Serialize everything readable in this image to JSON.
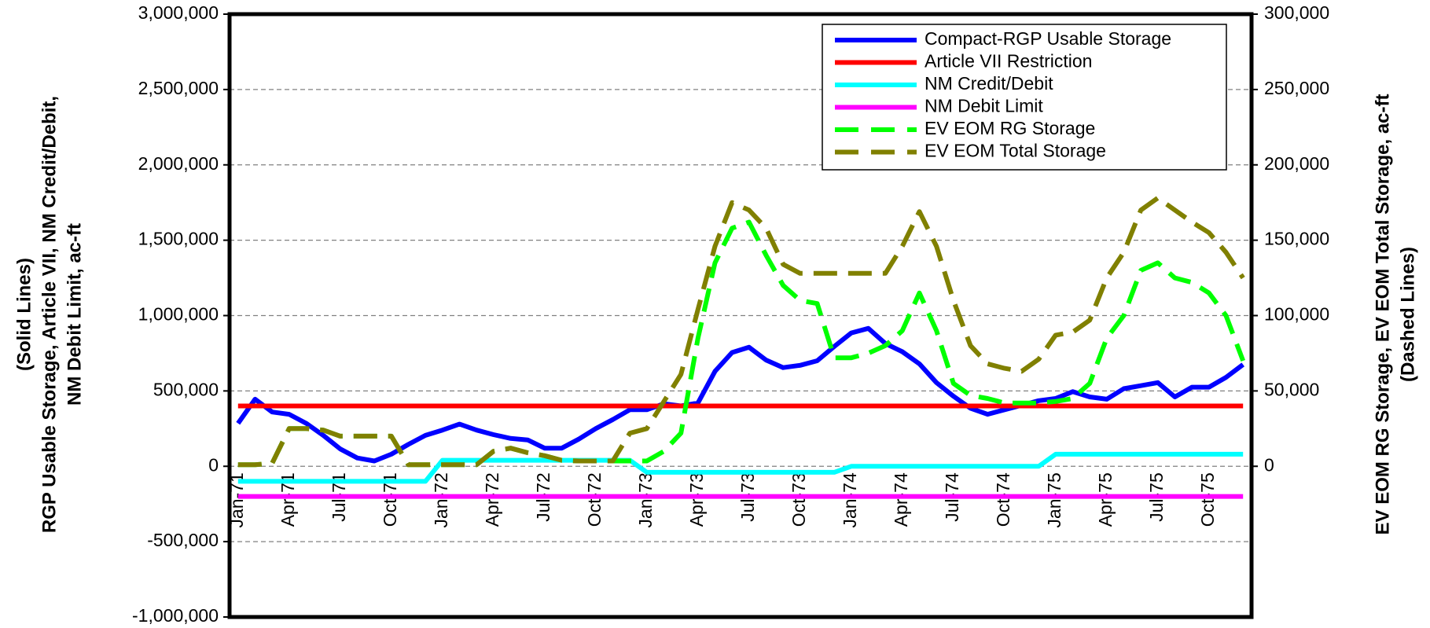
{
  "chart_data": {
    "type": "line",
    "y_label": [
      "(Solid Lines)",
      "RGP Usable Storage, Article VII, NM Credit/Debit,",
      "NM Debit Limit, ac-ft"
    ],
    "y2_label": [
      "EV EOM RG Storage, EV EOM Total Storage, ac-ft",
      "(Dashed Lines)"
    ],
    "categories": [
      "Jan-71",
      null,
      null,
      "Apr-71",
      null,
      null,
      "Jul-71",
      null,
      null,
      "Oct-71",
      null,
      null,
      "Jan-72",
      null,
      null,
      "Apr-72",
      null,
      null,
      "Jul-72",
      null,
      null,
      "Oct-72",
      null,
      null,
      "Jan-73",
      null,
      null,
      "Apr-73",
      null,
      null,
      "Jul-73",
      null,
      null,
      "Oct-73",
      null,
      null,
      "Jan-74",
      null,
      null,
      "Apr-74",
      null,
      null,
      "Jul-74",
      null,
      null,
      "Oct-74",
      null,
      null,
      "Jan-75",
      null,
      null,
      "Apr-75",
      null,
      null,
      "Jul-75",
      null,
      null,
      "Oct-75",
      null,
      null
    ],
    "ylim": [
      -1000000,
      3000000
    ],
    "yticks": [
      {
        "value": -1000000,
        "label": "-1,000,000"
      },
      {
        "value": -500000,
        "label": "-500,000"
      },
      0,
      {
        "value": 500000,
        "label": "500,000"
      },
      {
        "value": 1000000,
        "label": "1,000,000"
      },
      {
        "value": 1500000,
        "label": "1,500,000"
      },
      {
        "value": 2000000,
        "label": "2,000,000"
      },
      {
        "value": 2500000,
        "label": "2,500,000"
      },
      {
        "value": 3000000,
        "label": "3,000,000"
      }
    ],
    "y2lim": [
      -100000,
      300000
    ],
    "y2ticks": [
      0,
      {
        "value": 50000,
        "label": "50,000"
      },
      {
        "value": 100000,
        "label": "100,000"
      },
      {
        "value": 150000,
        "label": "150,000"
      },
      {
        "value": 200000,
        "label": "200,000"
      },
      {
        "value": 250000,
        "label": "250,000"
      },
      {
        "value": 300000,
        "label": "300,000"
      }
    ],
    "grid": true,
    "legend": "upper right",
    "series": [
      {
        "name": "Compact-RGP Usable Storage",
        "color": "#0000ff",
        "dashed": false,
        "values": [
          285000,
          445000,
          360000,
          345000,
          285000,
          205000,
          115000,
          55000,
          35000,
          80000,
          145000,
          205000,
          240000,
          280000,
          240000,
          210000,
          185000,
          175000,
          120000,
          120000,
          180000,
          250000,
          310000,
          375000,
          375000,
          415000,
          400000,
          420000,
          630000,
          755000,
          790000,
          705000,
          655000,
          670000,
          700000,
          795000,
          885000,
          915000,
          815000,
          760000,
          680000,
          555000,
          465000,
          385000,
          345000,
          375000,
          405000,
          435000,
          450000,
          495000,
          460000,
          445000,
          515000,
          535000,
          555000,
          460000,
          525000,
          525000,
          590000,
          675000
        ]
      },
      {
        "name": "Article VII Restriction",
        "color": "#ff0000",
        "dashed": false,
        "values": [
          400000,
          400000,
          400000,
          400000,
          400000,
          400000,
          400000,
          400000,
          400000,
          400000,
          400000,
          400000,
          400000,
          400000,
          400000,
          400000,
          400000,
          400000,
          400000,
          400000,
          400000,
          400000,
          400000,
          400000,
          400000,
          400000,
          400000,
          400000,
          400000,
          400000,
          400000,
          400000,
          400000,
          400000,
          400000,
          400000,
          400000,
          400000,
          400000,
          400000,
          400000,
          400000,
          400000,
          400000,
          400000,
          400000,
          400000,
          400000,
          400000,
          400000,
          400000,
          400000,
          400000,
          400000,
          400000,
          400000,
          400000,
          400000,
          400000,
          400000
        ]
      },
      {
        "name": "NM Credit/Debit",
        "color": "#00ffff",
        "dashed": false,
        "values": [
          -100000,
          -100000,
          -100000,
          -100000,
          -100000,
          -100000,
          -100000,
          -100000,
          -100000,
          -100000,
          -100000,
          -100000,
          40000,
          40000,
          40000,
          40000,
          40000,
          40000,
          40000,
          40000,
          40000,
          40000,
          40000,
          40000,
          -40000,
          -40000,
          -40000,
          -40000,
          -40000,
          -40000,
          -40000,
          -40000,
          -40000,
          -40000,
          -40000,
          -40000,
          0,
          0,
          0,
          0,
          0,
          0,
          0,
          0,
          0,
          0,
          0,
          0,
          80000,
          80000,
          80000,
          80000,
          80000,
          80000,
          80000,
          80000,
          80000,
          80000,
          80000,
          80000
        ]
      },
      {
        "name": "NM Debit Limit",
        "color": "#ff00ff",
        "dashed": false,
        "values": [
          -200000,
          -200000,
          -200000,
          -200000,
          -200000,
          -200000,
          -200000,
          -200000,
          -200000,
          -200000,
          -200000,
          -200000,
          -200000,
          -200000,
          -200000,
          -200000,
          -200000,
          -200000,
          -200000,
          -200000,
          -200000,
          -200000,
          -200000,
          -200000,
          -200000,
          -200000,
          -200000,
          -200000,
          -200000,
          -200000,
          -200000,
          -200000,
          -200000,
          -200000,
          -200000,
          -200000,
          -200000,
          -200000,
          -200000,
          -200000,
          -200000,
          -200000,
          -200000,
          -200000,
          -200000,
          -200000,
          -200000,
          -200000,
          -200000,
          -200000,
          -200000,
          -200000,
          -200000,
          -200000,
          -200000,
          -200000,
          -200000,
          -200000,
          -200000,
          -200000
        ]
      },
      {
        "name": "EV EOM RG Storage",
        "color": "#00ff00",
        "dashed": true,
        "axis": "y2",
        "values": [
          1000,
          1000,
          2000,
          25000,
          25000,
          24000,
          20000,
          20000,
          20000,
          20000,
          1000,
          1000,
          1000,
          1000,
          1000,
          10000,
          12000,
          9000,
          7000,
          4000,
          3500,
          3500,
          3500,
          3500,
          3500,
          10000,
          22000,
          85000,
          135000,
          158000,
          162000,
          140000,
          120000,
          110000,
          108000,
          72000,
          72000,
          75000,
          80000,
          90000,
          115000,
          90000,
          55000,
          47000,
          45000,
          42000,
          42000,
          42000,
          43000,
          45000,
          55000,
          85000,
          100000,
          130000,
          135000,
          125000,
          122000,
          115000,
          100000,
          70000
        ]
      },
      {
        "name": "EV EOM Total Storage",
        "color": "#808000",
        "dashed": true,
        "axis": "y2",
        "values": [
          1000,
          1000,
          2000,
          25000,
          25000,
          24000,
          20000,
          20000,
          20000,
          20000,
          1000,
          1000,
          1000,
          1000,
          1000,
          10000,
          12000,
          9000,
          7000,
          4000,
          3500,
          3500,
          3500,
          22000,
          25000,
          43000,
          61000,
          104000,
          146000,
          175000,
          170000,
          158000,
          134000,
          128000,
          128000,
          128000,
          128000,
          128000,
          128000,
          146000,
          169000,
          146000,
          110000,
          80000,
          68000,
          65000,
          63000,
          71000,
          87000,
          89000,
          97000,
          125000,
          142000,
          170000,
          178000,
          170000,
          162000,
          155000,
          142000,
          125000
        ]
      }
    ]
  }
}
